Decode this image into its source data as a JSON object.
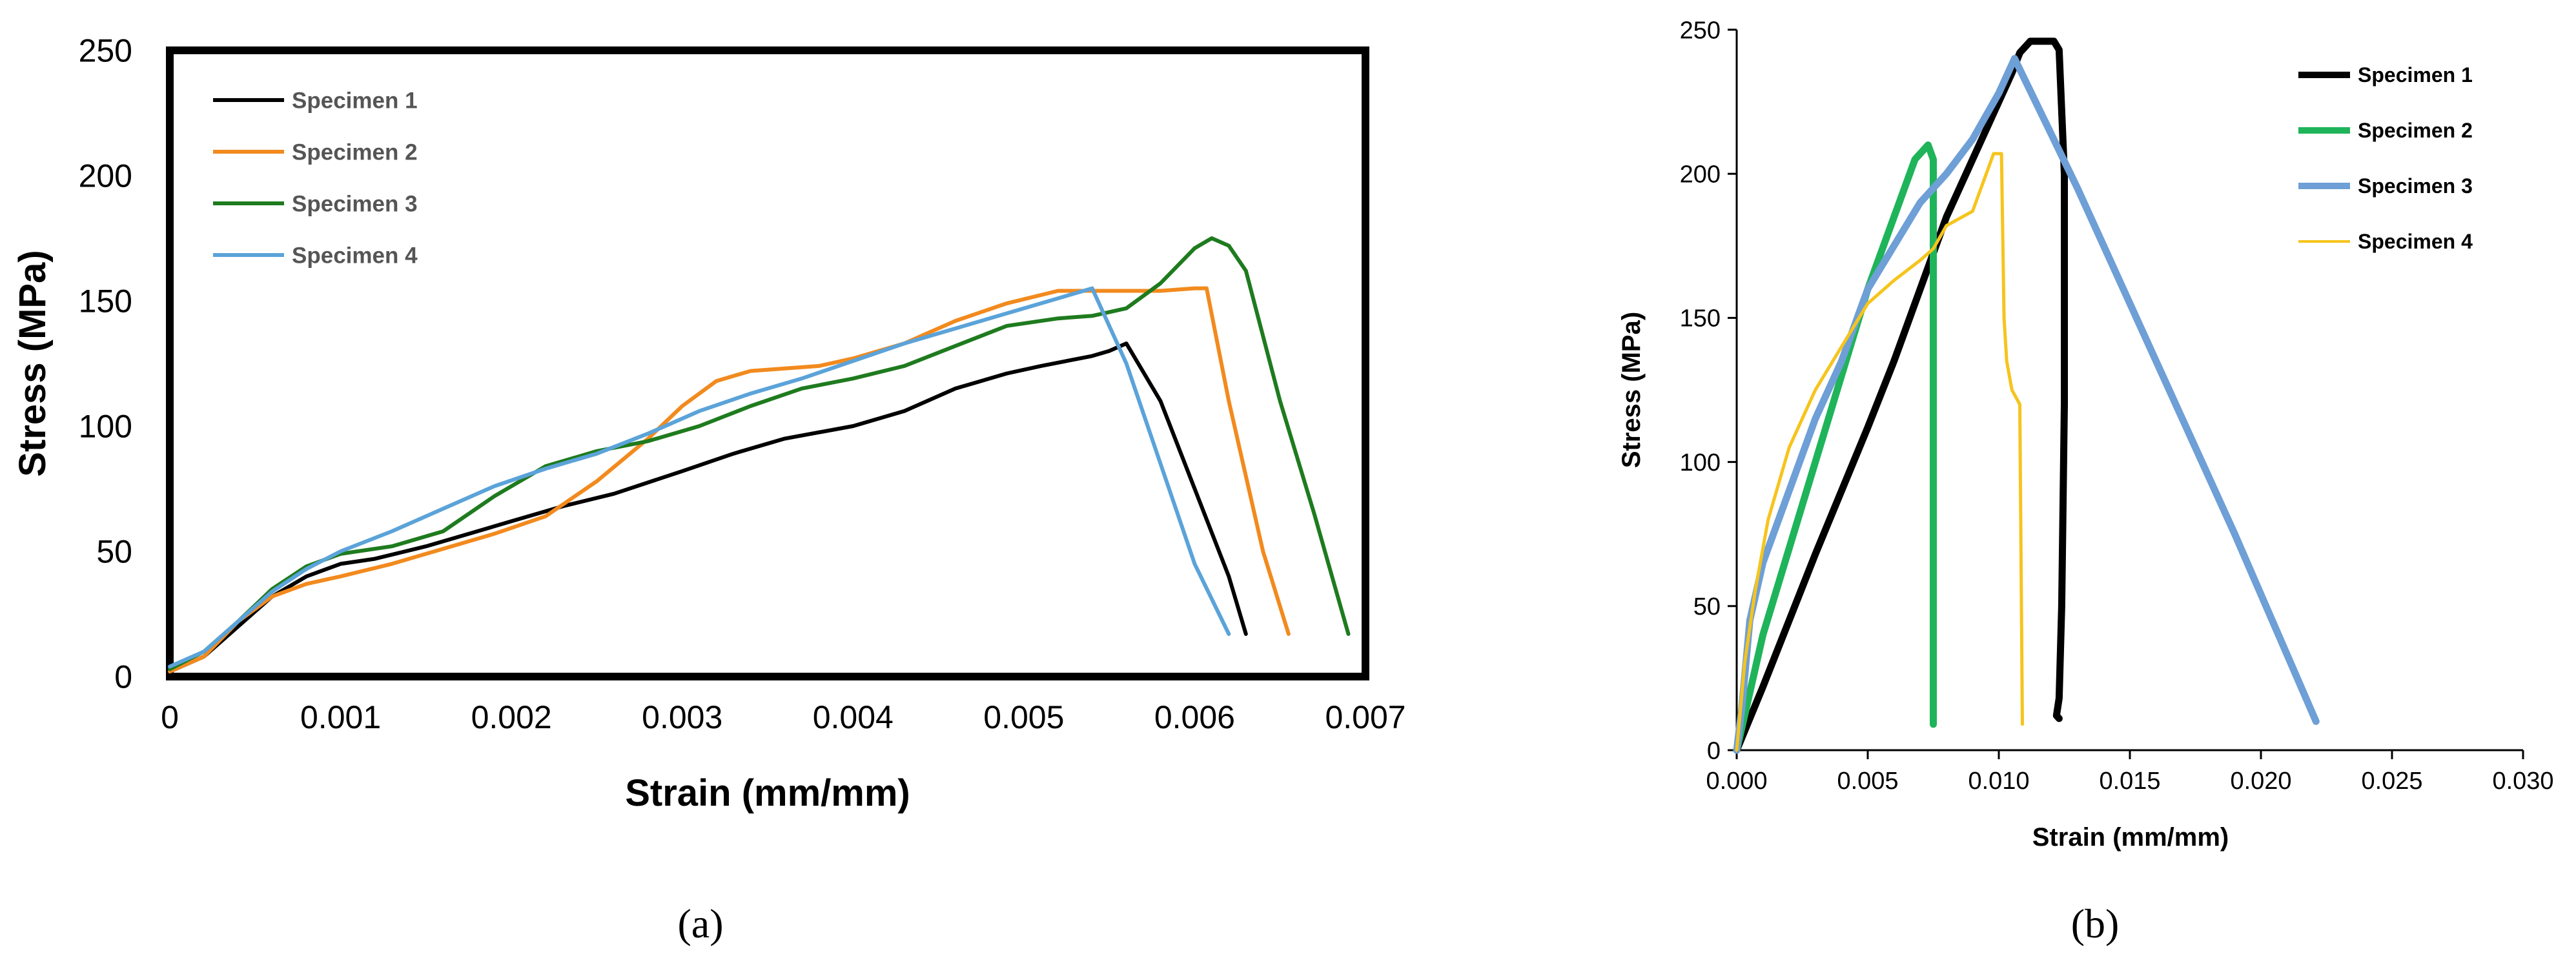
{
  "captions": {
    "a": "(a)",
    "b": "(b)"
  },
  "chart_data": [
    {
      "id": "a",
      "type": "line",
      "title": "",
      "xlabel": "Strain (mm/mm)",
      "ylabel": "Stress (MPa)",
      "xlim": [
        0,
        0.007
      ],
      "ylim": [
        0,
        250
      ],
      "xticks": [
        0,
        0.001,
        0.002,
        0.003,
        0.004,
        0.005,
        0.006,
        0.007
      ],
      "xtick_labels": [
        "0",
        "0.001",
        "0.002",
        "0.003",
        "0.004",
        "0.005",
        "0.006",
        "0.007"
      ],
      "yticks": [
        0,
        50,
        100,
        150,
        200,
        250
      ],
      "ytick_labels": [
        "0",
        "50",
        "100",
        "150",
        "200",
        "250"
      ],
      "grid": false,
      "legend_position": "top-left",
      "series": [
        {
          "name": "Specimen 1",
          "color": "#000000",
          "x": [
            0,
            0.0002,
            0.0004,
            0.0006,
            0.0008,
            0.001,
            0.0012,
            0.0015,
            0.0018,
            0.002,
            0.0023,
            0.0026,
            0.003,
            0.0033,
            0.0036,
            0.004,
            0.0043,
            0.0046,
            0.0049,
            0.0051,
            0.0054,
            0.0055,
            0.0056,
            0.0058,
            0.006,
            0.0062,
            0.0063
          ],
          "y": [
            2,
            8,
            20,
            32,
            40,
            45,
            47,
            52,
            58,
            62,
            68,
            73,
            82,
            89,
            95,
            100,
            106,
            115,
            121,
            124,
            128,
            130,
            133,
            110,
            75,
            40,
            17
          ]
        },
        {
          "name": "Specimen 2",
          "color": "#f28a1e",
          "x": [
            0,
            0.0002,
            0.0004,
            0.0006,
            0.0008,
            0.001,
            0.0013,
            0.0016,
            0.0019,
            0.0022,
            0.0025,
            0.0028,
            0.003,
            0.0032,
            0.0034,
            0.0036,
            0.0038,
            0.004,
            0.0043,
            0.0046,
            0.0049,
            0.0052,
            0.0055,
            0.0058,
            0.006,
            0.00607,
            0.0062,
            0.0064,
            0.00655
          ],
          "y": [
            2,
            8,
            22,
            32,
            37,
            40,
            45,
            51,
            57,
            64,
            78,
            95,
            108,
            118,
            122,
            123,
            124,
            127,
            133,
            142,
            149,
            154,
            154,
            154,
            155,
            155,
            110,
            50,
            17
          ]
        },
        {
          "name": "Specimen 3",
          "color": "#1e7b1e",
          "x": [
            0,
            0.0002,
            0.0004,
            0.0006,
            0.0008,
            0.001,
            0.0013,
            0.0016,
            0.0019,
            0.0022,
            0.0025,
            0.0028,
            0.0031,
            0.0034,
            0.0037,
            0.004,
            0.0043,
            0.0046,
            0.0049,
            0.0052,
            0.0054,
            0.0056,
            0.0058,
            0.006,
            0.0061,
            0.0062,
            0.0063,
            0.0065,
            0.0067,
            0.0069
          ],
          "y": [
            3,
            10,
            22,
            35,
            44,
            49,
            52,
            58,
            72,
            84,
            90,
            94,
            100,
            108,
            115,
            119,
            124,
            132,
            140,
            143,
            144,
            147,
            157,
            171,
            175,
            172,
            162,
            110,
            65,
            17
          ]
        },
        {
          "name": "Specimen 4",
          "color": "#5ba3d9",
          "x": [
            0,
            0.0002,
            0.0004,
            0.0006,
            0.0008,
            0.001,
            0.0013,
            0.0016,
            0.0019,
            0.0022,
            0.0025,
            0.0028,
            0.0031,
            0.0034,
            0.0037,
            0.004,
            0.0043,
            0.0046,
            0.0049,
            0.0052,
            0.0054,
            0.0056,
            0.0058,
            0.006,
            0.0062
          ],
          "y": [
            4,
            10,
            22,
            34,
            43,
            50,
            58,
            67,
            76,
            83,
            89,
            97,
            106,
            113,
            119,
            126,
            133,
            139,
            145,
            151,
            155,
            125,
            85,
            45,
            17
          ]
        }
      ]
    },
    {
      "id": "b",
      "type": "line",
      "title": "",
      "xlabel": "Strain (mm/mm)",
      "ylabel": "Stress (MPa)",
      "xlim": [
        0,
        0.03
      ],
      "ylim": [
        0,
        250
      ],
      "xticks": [
        0,
        0.005,
        0.01,
        0.015,
        0.02,
        0.025,
        0.03
      ],
      "xtick_labels": [
        "0.000",
        "0.005",
        "0.010",
        "0.015",
        "0.020",
        "0.025",
        "0.030"
      ],
      "yticks": [
        0,
        50,
        100,
        150,
        200,
        250
      ],
      "ytick_labels": [
        "0",
        "50",
        "100",
        "150",
        "200",
        "250"
      ],
      "grid": false,
      "legend_position": "top-right",
      "series": [
        {
          "name": "Specimen 1",
          "color": "#000000",
          "width": 11,
          "x": [
            0,
            0.001,
            0.002,
            0.003,
            0.004,
            0.005,
            0.006,
            0.007,
            0.008,
            0.009,
            0.01,
            0.0105,
            0.0108,
            0.0112,
            0.0117,
            0.0121,
            0.0123,
            0.0125,
            0.0125,
            0.0124,
            0.0123,
            0.0122,
            0.0123
          ],
          "y": [
            0,
            22,
            45,
            68,
            90,
            112,
            135,
            160,
            185,
            205,
            225,
            235,
            242,
            246,
            246,
            246,
            243,
            200,
            120,
            50,
            18,
            12,
            11
          ]
        },
        {
          "name": "Specimen 2",
          "color": "#1fb45a",
          "width": 11,
          "x": [
            0,
            0.0005,
            0.001,
            0.002,
            0.003,
            0.004,
            0.005,
            0.006,
            0.0068,
            0.0073,
            0.0075,
            0.0075,
            0.0075
          ],
          "y": [
            0,
            20,
            40,
            70,
            100,
            130,
            160,
            185,
            205,
            210,
            205,
            100,
            9
          ]
        },
        {
          "name": "Specimen 3",
          "color": "#6e9fd6",
          "width": 11,
          "x": [
            0,
            0.0002,
            0.0005,
            0.001,
            0.002,
            0.003,
            0.004,
            0.005,
            0.006,
            0.007,
            0.008,
            0.009,
            0.01,
            0.0106,
            0.013,
            0.016,
            0.019,
            0.0221
          ],
          "y": [
            0,
            15,
            45,
            65,
            90,
            115,
            135,
            160,
            175,
            190,
            200,
            212,
            228,
            240,
            195,
            135,
            75,
            10
          ]
        },
        {
          "name": "Specimen 4",
          "color": "#f6c41c",
          "width": 5,
          "x": [
            0,
            0.0003,
            0.0007,
            0.0012,
            0.002,
            0.003,
            0.004,
            0.005,
            0.006,
            0.007,
            0.0075,
            0.008,
            0.009,
            0.0098,
            0.0101,
            0.0102,
            0.0103,
            0.0104,
            0.0105,
            0.0108,
            0.0109
          ],
          "y": [
            0,
            30,
            55,
            80,
            105,
            125,
            140,
            155,
            163,
            170,
            174,
            182,
            187,
            207,
            207,
            150,
            135,
            130,
            125,
            120,
            9
          ]
        }
      ]
    }
  ]
}
